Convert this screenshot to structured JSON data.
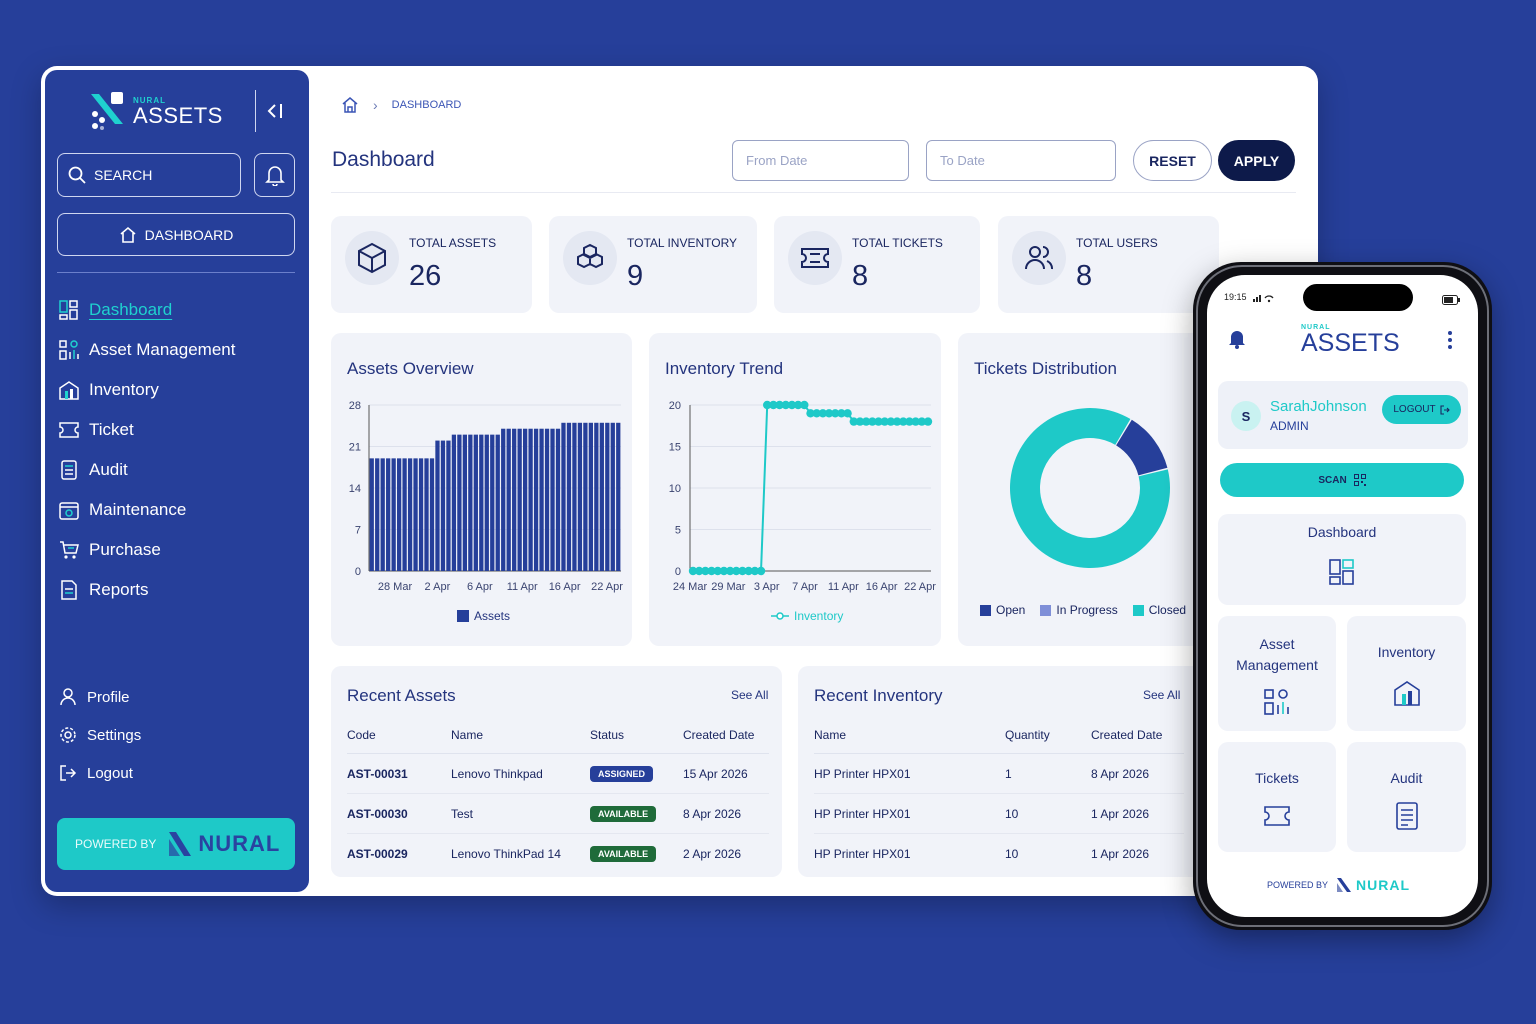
{
  "sidebar": {
    "logo_small": "NURAL",
    "logo_big": "ASSETS",
    "search_label": "SEARCH",
    "dashboard_button": "DASHBOARD",
    "items": [
      {
        "label": "Dashboard",
        "icon": "dashboard-icon",
        "active": true
      },
      {
        "label": "Asset Management",
        "icon": "asset-management-icon"
      },
      {
        "label": "Inventory",
        "icon": "inventory-icon"
      },
      {
        "label": "Ticket",
        "icon": "ticket-icon"
      },
      {
        "label": "Audit",
        "icon": "audit-icon"
      },
      {
        "label": "Maintenance",
        "icon": "maintenance-icon"
      },
      {
        "label": "Purchase",
        "icon": "cart-icon"
      },
      {
        "label": "Reports",
        "icon": "reports-icon"
      }
    ],
    "bottom_items": [
      {
        "label": "Profile",
        "icon": "user-icon"
      },
      {
        "label": "Settings",
        "icon": "gear-icon"
      },
      {
        "label": "Logout",
        "icon": "logout-icon"
      }
    ],
    "powered_by": "POWERED BY",
    "brand": "NURAL"
  },
  "header": {
    "breadcrumb": "DASHBOARD",
    "title": "Dashboard",
    "from_date_placeholder": "From Date",
    "to_date_placeholder": "To Date",
    "reset_label": "RESET",
    "apply_label": "APPLY"
  },
  "stats": [
    {
      "label": "TOTAL ASSETS",
      "value": "26",
      "icon": "box-icon"
    },
    {
      "label": "TOTAL INVENTORY",
      "value": "9",
      "icon": "boxes-icon"
    },
    {
      "label": "TOTAL TICKETS",
      "value": "8",
      "icon": "ticket-icon"
    },
    {
      "label": "TOTAL USERS",
      "value": "8",
      "icon": "users-icon"
    }
  ],
  "charts": {
    "assets_title": "Assets Overview",
    "inventory_title": "Inventory Trend",
    "tickets_title": "Tickets Distribution"
  },
  "chart_data": [
    {
      "type": "bar",
      "title": "Assets Overview",
      "series": [
        {
          "name": "Assets",
          "values": [
            19,
            19,
            19,
            19,
            19,
            19,
            19,
            19,
            19,
            19,
            19,
            19,
            22,
            22,
            22,
            23,
            23,
            23,
            23,
            23,
            23,
            23,
            23,
            23,
            24,
            24,
            24,
            24,
            24,
            24,
            24,
            24,
            24,
            24,
            24,
            25,
            25,
            25,
            25,
            25,
            25,
            25,
            25,
            25,
            25,
            25
          ]
        }
      ],
      "x_tick_labels": [
        "28 Mar",
        "2 Apr",
        "6 Apr",
        "11 Apr",
        "16 Apr",
        "22 Apr"
      ],
      "y_ticks": [
        0,
        7,
        14,
        21,
        28
      ],
      "ylim": [
        0,
        28
      ],
      "color": "#263f9a"
    },
    {
      "type": "line",
      "title": "Inventory Trend",
      "series": [
        {
          "name": "Inventory",
          "values": [
            0,
            0,
            0,
            0,
            0,
            0,
            0,
            0,
            0,
            0,
            0,
            0,
            20,
            20,
            20,
            20,
            20,
            20,
            20,
            19,
            19,
            19,
            19,
            19,
            19,
            19,
            18,
            18,
            18,
            18,
            18,
            18,
            18,
            18,
            18,
            18,
            18,
            18,
            18
          ]
        }
      ],
      "x_tick_labels": [
        "24 Mar",
        "29 Mar",
        "3 Apr",
        "7 Apr",
        "11 Apr",
        "16 Apr",
        "22 Apr"
      ],
      "y_ticks": [
        0,
        5,
        10,
        15,
        20
      ],
      "ylim": [
        0,
        20
      ],
      "color": "#1ec9c8"
    },
    {
      "type": "pie",
      "title": "Tickets Distribution",
      "slices": [
        {
          "name": "Open",
          "value": 0,
          "color": "#263f9a"
        },
        {
          "name": "In Progress",
          "value": 1,
          "color": "#7f8fd8"
        },
        {
          "name": "Closed",
          "value": 7,
          "color": "#1ec9c8"
        }
      ]
    }
  ],
  "recent_assets": {
    "title": "Recent Assets",
    "see_all": "See All",
    "columns": [
      "Code",
      "Name",
      "Status",
      "Created Date"
    ],
    "rows": [
      {
        "code": "AST-00031",
        "name": "Lenovo Thinkpad",
        "status": "ASSIGNED",
        "status_color": "#263f9a",
        "date": "15 Apr 2026"
      },
      {
        "code": "AST-00030",
        "name": "Test",
        "status": "AVAILABLE",
        "status_color": "#1f6b3a",
        "date": "8 Apr 2026"
      },
      {
        "code": "AST-00029",
        "name": "Lenovo ThinkPad 14",
        "status": "AVAILABLE",
        "status_color": "#1f6b3a",
        "date": "2 Apr 2026"
      }
    ]
  },
  "recent_inventory": {
    "title": "Recent Inventory",
    "see_all": "See All",
    "columns": [
      "Name",
      "Quantity",
      "Created Date"
    ],
    "rows": [
      {
        "name": "HP Printer HPX01",
        "qty": "1",
        "date": "8 Apr 2026"
      },
      {
        "name": "HP Printer HPX01",
        "qty": "10",
        "date": "1 Apr 2026"
      },
      {
        "name": "HP Printer HPX01",
        "qty": "10",
        "date": "1 Apr 2026"
      }
    ]
  },
  "phone": {
    "time": "19:15",
    "logo_small": "NURAL",
    "logo_big": "ASSETS",
    "avatar_initial": "S",
    "user_name": "SarahJohnson",
    "user_role": "ADMIN",
    "logout_label": "LOGOUT",
    "scan_label": "SCAN",
    "tiles": [
      {
        "label": "Dashboard",
        "icon": "dashboard-icon"
      },
      {
        "label": "Asset Management",
        "icon": "asset-management-icon"
      },
      {
        "label": "Inventory",
        "icon": "inventory-icon"
      },
      {
        "label": "Tickets",
        "icon": "ticket-icon"
      },
      {
        "label": "Audit",
        "icon": "audit-icon"
      }
    ],
    "powered_by": "POWERED BY",
    "brand": "NURAL"
  }
}
